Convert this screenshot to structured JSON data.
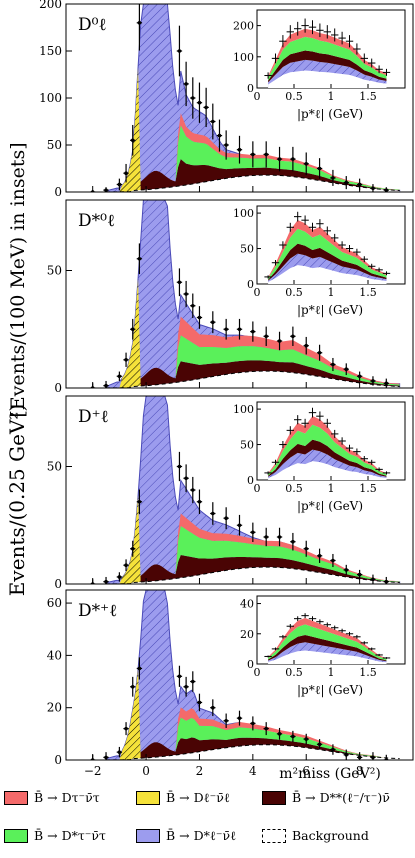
{
  "figure": {
    "ylabel": "Events/(0.25 GeV²)",
    "ylabel_inset": "[Events/(100 MeV)  in insets]",
    "xlabel": "m²miss (GeV²)",
    "inset_xlabel": "|p*ℓ| (GeV)"
  },
  "colors": {
    "dtaunu": "#f46a6a",
    "dstartaunu": "#5af05a",
    "dlnu": "#f5e23a",
    "dstarlnu": "#9c9cee",
    "dstarstar": "#4a0404",
    "background": "#ffffff"
  },
  "legend": [
    {
      "key": "dtaunu",
      "label": "B̄ → Dτ⁻ν̄τ"
    },
    {
      "key": "dlnu",
      "label": "B̄ → Dℓ⁻ν̄ℓ"
    },
    {
      "key": "dstarstar",
      "label": "B̄ → D**(ℓ⁻/τ⁻)ν̄"
    },
    {
      "key": "dstartaunu",
      "label": "B̄ → D*τ⁻ν̄τ"
    },
    {
      "key": "dstarlnu",
      "label": "B̄ → D*ℓ⁻ν̄ℓ"
    },
    {
      "key": "background",
      "label": "Background"
    }
  ],
  "chart_data": [
    {
      "type": "area",
      "panel_label": "D⁰ℓ",
      "xlim": [
        -3,
        10
      ],
      "ylim": [
        0,
        200
      ],
      "yticks": [
        0,
        50,
        100,
        150,
        200
      ],
      "xticks": [
        -2,
        0,
        2,
        4,
        6,
        8
      ],
      "points_x": [
        -2.0,
        -1.5,
        -1.0,
        -0.75,
        -0.5,
        -0.25,
        1.25,
        1.5,
        1.75,
        2.0,
        2.25,
        2.5,
        2.75,
        3.0,
        3.5,
        4.0,
        4.5,
        5.0,
        5.5,
        6.0,
        6.5,
        7.0,
        7.5,
        8.0,
        8.5,
        9.0
      ],
      "points_y": [
        0,
        2,
        8,
        20,
        55,
        180,
        150,
        115,
        100,
        95,
        90,
        75,
        60,
        50,
        45,
        40,
        40,
        35,
        35,
        30,
        25,
        15,
        10,
        8,
        4,
        2
      ],
      "inset": {
        "xlim": [
          0,
          2
        ],
        "ylim": [
          0,
          250
        ],
        "yticks": [
          0,
          100,
          200
        ],
        "xticks": [
          0,
          0.5,
          1,
          1.5
        ],
        "points_x": [
          0.15,
          0.25,
          0.35,
          0.45,
          0.55,
          0.65,
          0.75,
          0.85,
          0.95,
          1.05,
          1.15,
          1.25,
          1.35,
          1.45,
          1.55,
          1.65,
          1.75
        ],
        "points_y": [
          40,
          95,
          150,
          180,
          190,
          200,
          195,
          185,
          180,
          170,
          160,
          150,
          125,
          95,
          80,
          60,
          50
        ]
      }
    },
    {
      "type": "area",
      "panel_label": "D*⁰ℓ",
      "xlim": [
        -3,
        10
      ],
      "ylim": [
        0,
        80
      ],
      "yticks": [
        0,
        50
      ],
      "xticks": [
        -2,
        0,
        2,
        4,
        6,
        8
      ],
      "points_x": [
        -2.0,
        -1.5,
        -1.0,
        -0.75,
        -0.5,
        -0.25,
        1.25,
        1.5,
        1.75,
        2.0,
        2.5,
        3.0,
        3.5,
        4.0,
        4.5,
        5.0,
        5.5,
        6.0,
        6.5,
        7.0,
        7.5,
        8.0,
        8.5,
        9.0
      ],
      "points_y": [
        0,
        1,
        5,
        12,
        25,
        55,
        45,
        40,
        35,
        30,
        28,
        25,
        25,
        24,
        22,
        20,
        22,
        18,
        15,
        10,
        8,
        5,
        3,
        2
      ],
      "inset": {
        "xlim": [
          0,
          2
        ],
        "ylim": [
          0,
          110
        ],
        "yticks": [
          0,
          50,
          100
        ],
        "xticks": [
          0,
          0.5,
          1,
          1.5
        ],
        "points_x": [
          0.15,
          0.25,
          0.35,
          0.45,
          0.55,
          0.65,
          0.75,
          0.85,
          0.95,
          1.05,
          1.15,
          1.25,
          1.35,
          1.45,
          1.55,
          1.65,
          1.75
        ],
        "points_y": [
          10,
          30,
          55,
          80,
          95,
          90,
          80,
          85,
          75,
          65,
          55,
          50,
          45,
          35,
          25,
          20,
          15
        ]
      }
    },
    {
      "type": "area",
      "panel_label": "D⁺ℓ",
      "xlim": [
        -3,
        10
      ],
      "ylim": [
        0,
        80
      ],
      "yticks": [
        0,
        50
      ],
      "xticks": [
        -2,
        0,
        2,
        4,
        6,
        8
      ],
      "points_x": [
        -2.0,
        -1.5,
        -1.0,
        -0.75,
        -0.5,
        -0.25,
        1.25,
        1.5,
        1.75,
        2.0,
        2.5,
        3.0,
        3.5,
        4.0,
        4.5,
        5.0,
        5.5,
        6.0,
        6.5,
        7.0,
        7.5,
        8.0,
        8.5,
        9.0
      ],
      "points_y": [
        0,
        1,
        3,
        8,
        15,
        35,
        50,
        45,
        40,
        35,
        30,
        28,
        25,
        22,
        20,
        20,
        18,
        15,
        12,
        10,
        6,
        4,
        2,
        1
      ],
      "inset": {
        "xlim": [
          0,
          2
        ],
        "ylim": [
          0,
          110
        ],
        "yticks": [
          0,
          50,
          100
        ],
        "xticks": [
          0,
          0.5,
          1,
          1.5
        ],
        "points_x": [
          0.15,
          0.25,
          0.35,
          0.45,
          0.55,
          0.65,
          0.75,
          0.85,
          0.95,
          1.05,
          1.15,
          1.25,
          1.35,
          1.45,
          1.55,
          1.65,
          1.75
        ],
        "points_y": [
          10,
          25,
          50,
          70,
          85,
          80,
          95,
          90,
          80,
          65,
          55,
          45,
          40,
          30,
          25,
          15,
          10
        ]
      }
    },
    {
      "type": "area",
      "panel_label": "D*⁺ℓ",
      "xlim": [
        -3,
        10
      ],
      "ylim": [
        0,
        65
      ],
      "yticks": [
        0,
        20,
        40,
        60
      ],
      "xticks": [
        -2,
        0,
        2,
        4,
        6,
        8
      ],
      "points_x": [
        -2.0,
        -1.5,
        -1.0,
        -0.75,
        -0.5,
        -0.25,
        1.25,
        1.5,
        1.75,
        2.0,
        2.5,
        3.0,
        3.5,
        4.0,
        4.5,
        5.0,
        5.5,
        6.0,
        6.5,
        7.0,
        7.5,
        8.0,
        8.5,
        9.0
      ],
      "points_y": [
        0,
        1,
        3,
        12,
        28,
        35,
        32,
        28,
        30,
        22,
        20,
        15,
        16,
        14,
        12,
        10,
        9,
        8,
        6,
        4,
        2,
        1,
        1,
        0
      ],
      "inset": {
        "xlim": [
          0,
          2
        ],
        "ylim": [
          0,
          45
        ],
        "yticks": [
          0,
          20,
          40
        ],
        "xticks": [
          0,
          0.5,
          1,
          1.5
        ],
        "points_x": [
          0.15,
          0.25,
          0.35,
          0.45,
          0.55,
          0.65,
          0.75,
          0.85,
          0.95,
          1.05,
          1.15,
          1.25,
          1.35,
          1.45,
          1.55,
          1.65,
          1.75
        ],
        "points_y": [
          5,
          10,
          18,
          25,
          30,
          32,
          30,
          28,
          26,
          24,
          22,
          20,
          18,
          14,
          10,
          6,
          4
        ]
      }
    }
  ]
}
